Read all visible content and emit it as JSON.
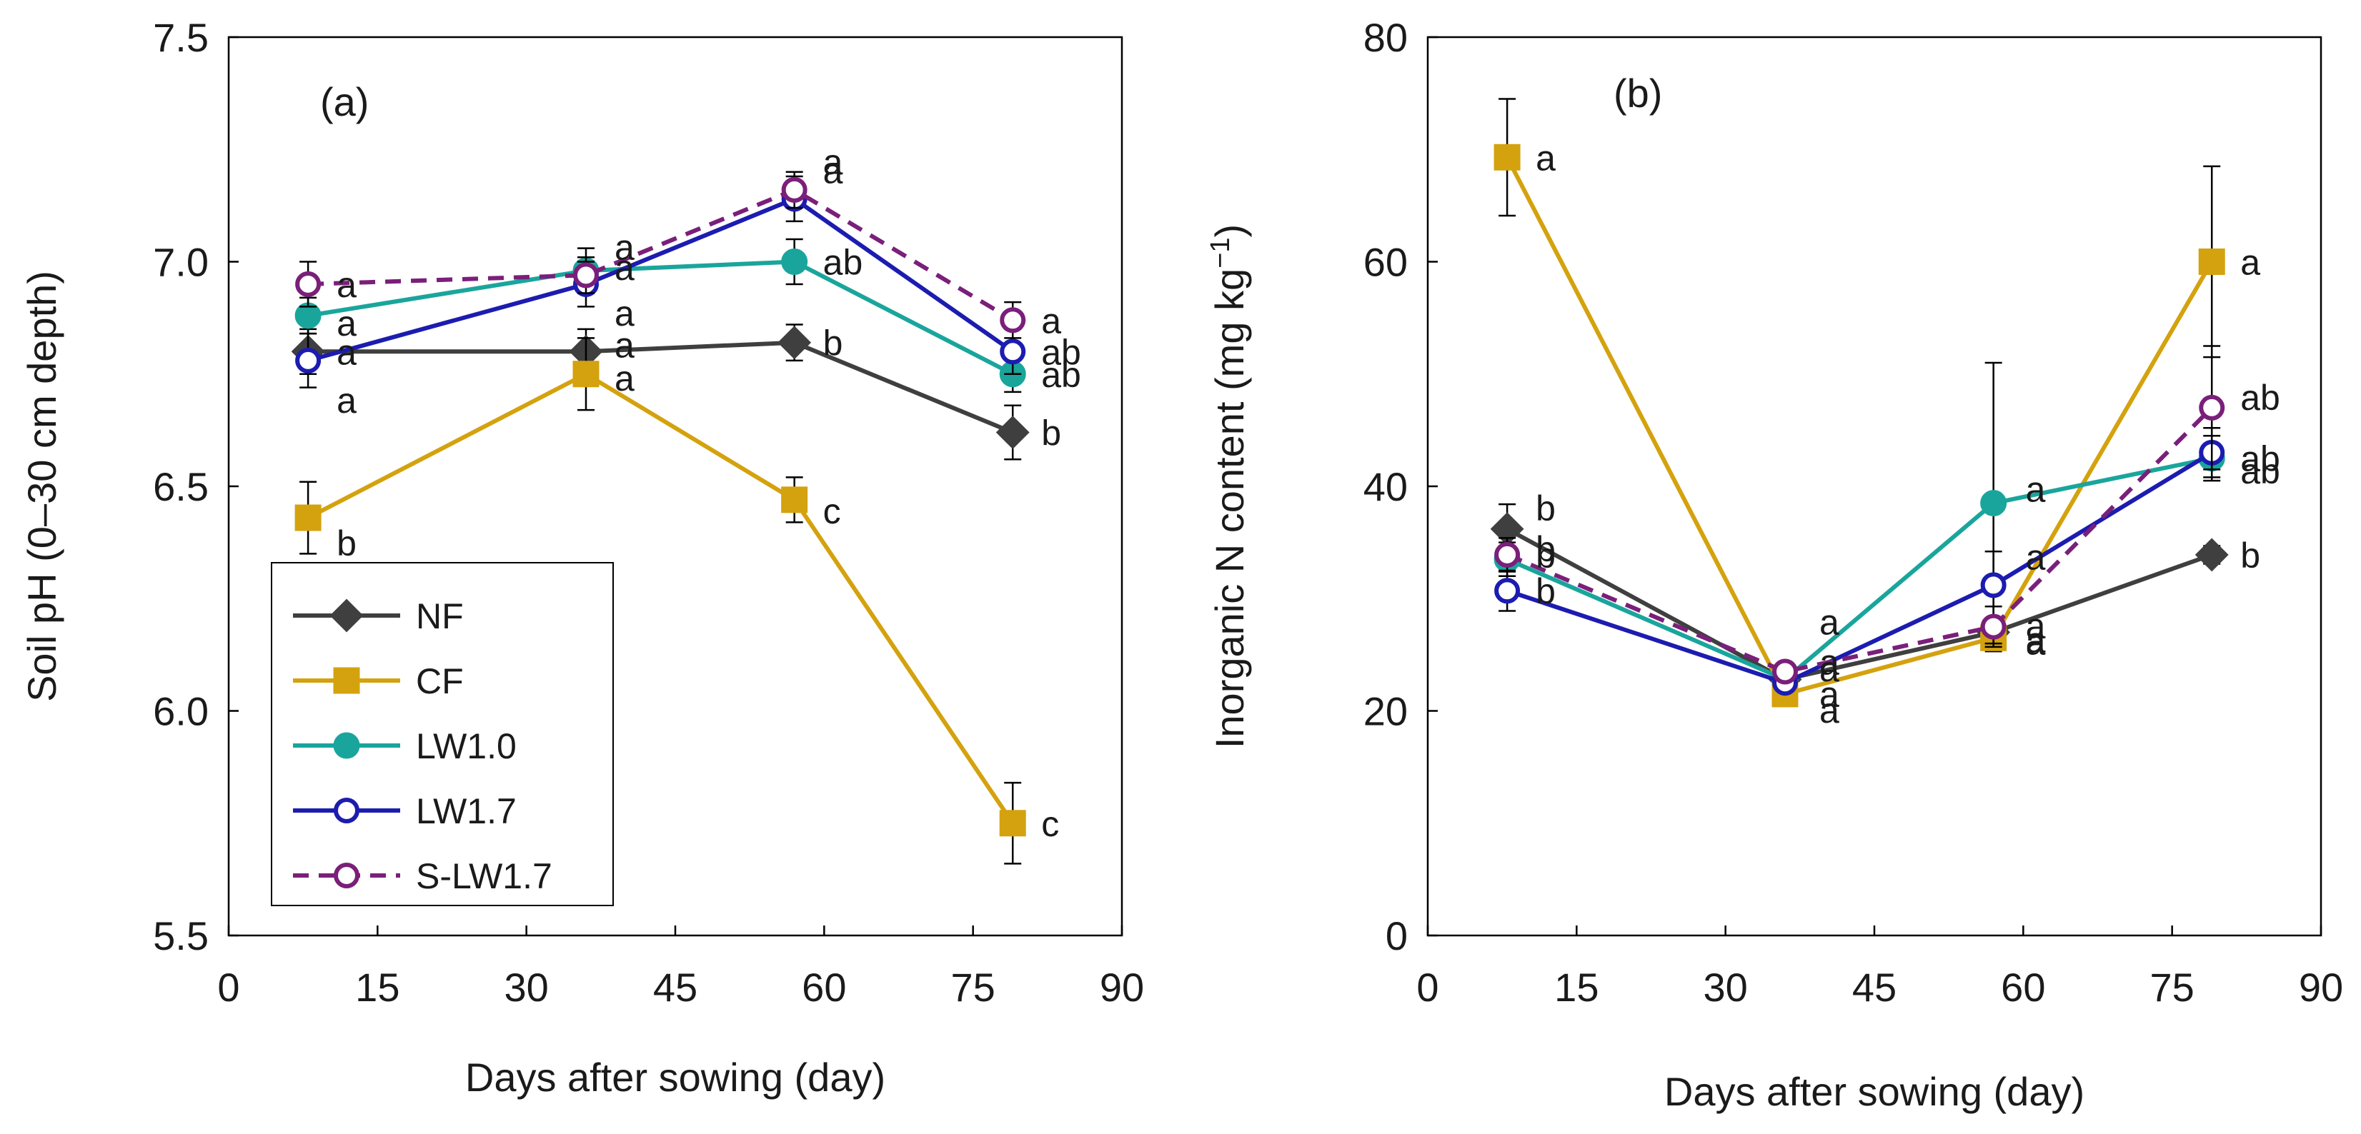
{
  "chart_data": [
    {
      "id": "a",
      "type": "line",
      "panel_label": "(a)",
      "xlabel": "Days after sowing (day)",
      "ylabel": "Soil pH (0–30 cm depth)",
      "xlim": [
        0,
        90
      ],
      "ylim": [
        5.5,
        7.5
      ],
      "xticks": [
        "0",
        "15",
        "30",
        "45",
        "60",
        "75",
        "90"
      ],
      "yticks": [
        "5.5",
        "6.0",
        "6.5",
        "7.0",
        "7.5"
      ],
      "x": [
        8,
        36,
        57,
        79
      ],
      "series": [
        {
          "name": "NF",
          "values": [
            6.8,
            6.8,
            6.82,
            6.62
          ],
          "errors": [
            0.05,
            0.05,
            0.04,
            0.06
          ],
          "letters": [
            "a",
            "a",
            "b",
            "b"
          ]
        },
        {
          "name": "CF",
          "values": [
            6.43,
            6.75,
            6.47,
            5.75
          ],
          "errors": [
            0.08,
            0.08,
            0.05,
            0.09
          ],
          "letters": [
            "b",
            "a",
            "c",
            "c"
          ]
        },
        {
          "name": "LW1.0",
          "values": [
            6.88,
            6.98,
            7.0,
            6.75
          ],
          "errors": [
            0.04,
            0.05,
            0.05,
            0.04
          ],
          "letters": [
            "a",
            "a",
            "ab",
            "ab"
          ]
        },
        {
          "name": "LW1.7",
          "values": [
            6.78,
            6.95,
            7.14,
            6.8
          ],
          "errors": [
            0.06,
            0.05,
            0.05,
            0.05
          ],
          "letters": [
            "a",
            "a",
            "a",
            "ab"
          ]
        },
        {
          "name": "S-LW1.7",
          "values": [
            6.95,
            6.97,
            7.16,
            6.87
          ],
          "errors": [
            0.05,
            0.04,
            0.04,
            0.04
          ],
          "letters": [
            "a",
            "a",
            "a",
            "a"
          ]
        }
      ],
      "legend": [
        "NF",
        "CF",
        "LW1.0",
        "LW1.7",
        "S-LW1.7"
      ],
      "legend_position": "bottom-left"
    },
    {
      "id": "b",
      "type": "line",
      "panel_label": "(b)",
      "xlabel": "Days after sowing (day)",
      "ylabel_main": "Inorganic N content (mg kg",
      "ylabel_sup": "−1",
      "ylabel_end": ")",
      "xlim": [
        0,
        90
      ],
      "ylim": [
        0,
        80
      ],
      "xticks": [
        "0",
        "15",
        "30",
        "45",
        "60",
        "75",
        "90"
      ],
      "yticks": [
        "0",
        "20",
        "40",
        "60",
        "80"
      ],
      "x": [
        8,
        36,
        57,
        79
      ],
      "series": [
        {
          "name": "NF",
          "values": [
            36.2,
            22.8,
            27.0,
            33.9
          ],
          "errors": [
            2.2,
            0.6,
            0.8,
            0.8
          ],
          "letters": [
            "b",
            "a",
            "a",
            "b"
          ]
        },
        {
          "name": "CF",
          "values": [
            69.3,
            21.5,
            26.5,
            60.0
          ],
          "errors": [
            5.2,
            0.6,
            1.2,
            8.5
          ],
          "letters": [
            "a",
            "a",
            "a",
            "a"
          ]
        },
        {
          "name": "LW1.0",
          "values": [
            33.5,
            22.8,
            38.5,
            42.5
          ],
          "errors": [
            1.5,
            0.6,
            12.5,
            2.0
          ],
          "letters": [
            "b",
            "a",
            "a",
            "ab"
          ]
        },
        {
          "name": "LW1.7",
          "values": [
            30.7,
            22.5,
            31.2,
            43.0
          ],
          "errors": [
            1.8,
            0.6,
            3.0,
            2.2
          ],
          "letters": [
            "b",
            "a",
            "a",
            "ab"
          ]
        },
        {
          "name": "S-LW1.7",
          "values": [
            33.9,
            23.5,
            27.5,
            47.0
          ],
          "errors": [
            1.5,
            0.6,
            1.8,
            5.5
          ],
          "letters": [
            "b",
            "a",
            "a",
            "ab"
          ]
        }
      ]
    }
  ],
  "styles": {
    "NF": {
      "color": "#3f3f3f",
      "marker": "diamond",
      "fill": "#3f3f3f",
      "dash": ""
    },
    "CF": {
      "color": "#d4a20e",
      "marker": "square",
      "fill": "#d4a20e",
      "dash": ""
    },
    "LW1.0": {
      "color": "#1aa59c",
      "marker": "circle",
      "fill": "#1aa59c",
      "dash": ""
    },
    "LW1.7": {
      "color": "#1c1cb0",
      "marker": "circle",
      "fill": "#ffffff",
      "dash": ""
    },
    "S-LW1.7": {
      "color": "#7a1f7a",
      "marker": "circle",
      "fill": "#ffffff",
      "dash": "22 14"
    }
  }
}
